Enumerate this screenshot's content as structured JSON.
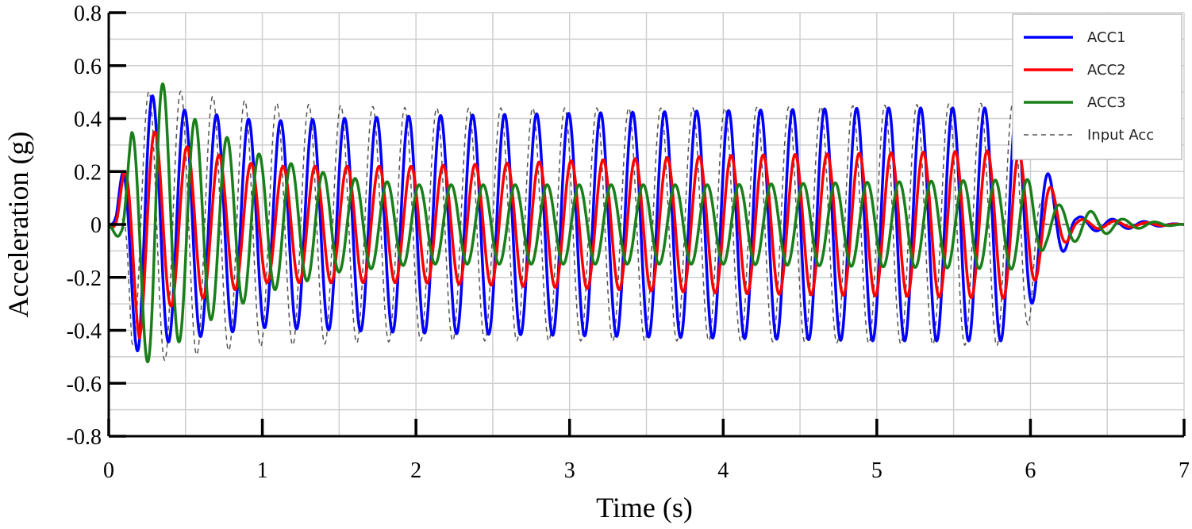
{
  "chart_data": {
    "type": "line",
    "xlabel": "Time (s)",
    "ylabel": "Acceleration (g)",
    "xlim": [
      0,
      7
    ],
    "ylim": [
      -0.8,
      0.8
    ],
    "x_ticks": [
      0,
      1,
      2,
      3,
      4,
      5,
      6,
      7
    ],
    "x_tick_labels": [
      "0",
      "1",
      "2",
      "3",
      "4",
      "5",
      "6",
      "7"
    ],
    "y_ticks": [
      -0.8,
      -0.6,
      -0.4,
      -0.2,
      0,
      0.2,
      0.4,
      0.6,
      0.8
    ],
    "y_tick_labels": [
      "-0.8",
      "-0.6",
      "-0.4",
      "-0.2",
      "0",
      "0.2",
      "0.4",
      "0.6",
      "0.8"
    ],
    "grid": true,
    "legend_position": "top-right",
    "frequency_hz": 4.8,
    "series": [
      {
        "name": "ACC1",
        "color": "#0000ff",
        "style": "solid",
        "phase_cycles": 0.12,
        "envelope_t": [
          0,
          0.05,
          0.1,
          0.2,
          0.4,
          1.0,
          2.0,
          3.0,
          4.0,
          5.0,
          5.9,
          6.05,
          6.3,
          7.0
        ],
        "envelope_a": [
          0.0,
          0.05,
          0.25,
          0.52,
          0.44,
          0.39,
          0.41,
          0.42,
          0.43,
          0.44,
          0.44,
          0.25,
          0.03,
          0.0
        ]
      },
      {
        "name": "ACC2",
        "color": "#ff0000",
        "style": "solid",
        "phase_cycles": 0.2,
        "envelope_t": [
          0,
          0.05,
          0.1,
          0.2,
          0.3,
          0.4,
          1.0,
          2.0,
          3.0,
          4.0,
          5.0,
          5.9,
          6.05,
          6.3,
          7.0
        ],
        "envelope_a": [
          0.0,
          0.05,
          0.2,
          0.43,
          0.35,
          0.31,
          0.22,
          0.22,
          0.24,
          0.26,
          0.27,
          0.28,
          0.2,
          0.02,
          0.0
        ]
      },
      {
        "name": "ACC3",
        "color": "#1a7f1a",
        "style": "solid",
        "phase_cycles": 0.45,
        "envelope_t": [
          0,
          0.08,
          0.15,
          0.3,
          0.4,
          0.6,
          1.0,
          1.5,
          2.0,
          3.0,
          4.0,
          5.0,
          6.0,
          6.1,
          6.25,
          6.6,
          7.0
        ],
        "envelope_a": [
          0.0,
          0.07,
          0.35,
          0.6,
          0.47,
          0.38,
          0.26,
          0.18,
          0.15,
          0.15,
          0.15,
          0.16,
          0.17,
          0.08,
          0.07,
          0.02,
          0.0
        ]
      },
      {
        "name": "Input Acc",
        "color": "#555555",
        "style": "dashed",
        "phase_cycles": 0.0,
        "envelope_t": [
          0,
          0.1,
          0.15,
          0.3,
          0.6,
          1.0,
          2.0,
          3.0,
          4.0,
          5.0,
          5.95,
          6.0,
          6.1,
          7.0
        ],
        "envelope_a": [
          0.0,
          0.05,
          0.45,
          0.52,
          0.49,
          0.46,
          0.44,
          0.44,
          0.44,
          0.45,
          0.46,
          0.35,
          0.0,
          0.0
        ]
      }
    ]
  }
}
